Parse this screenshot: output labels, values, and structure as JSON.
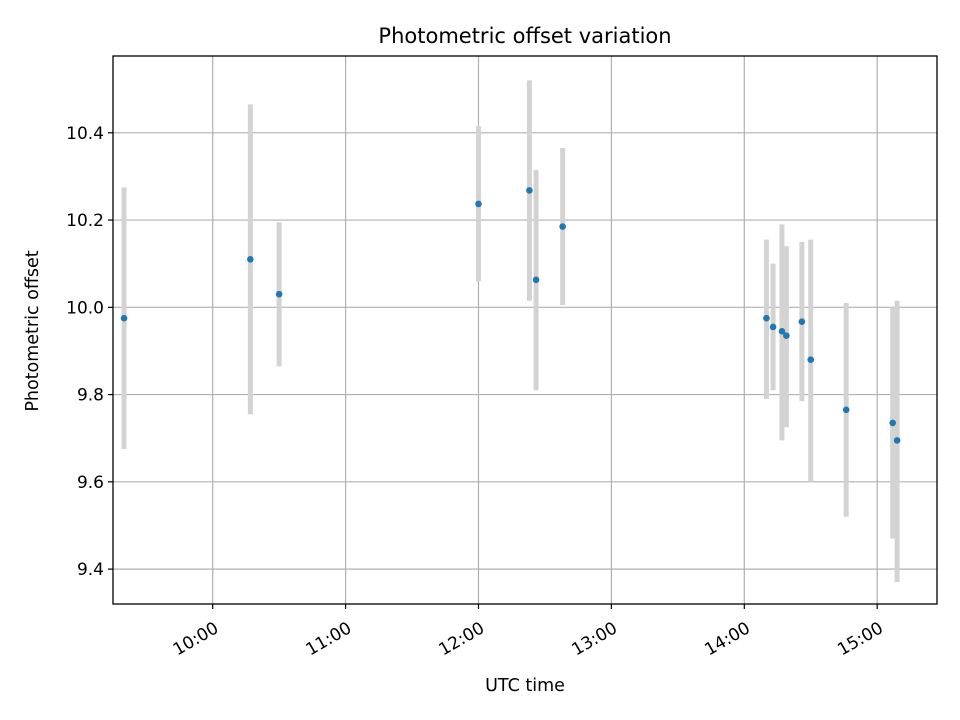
{
  "chart_data": {
    "type": "scatter",
    "title": "Photometric offset variation",
    "xlabel": "UTC time",
    "ylabel": "Photometric offset",
    "xlim": [
      "09:15",
      "15:27"
    ],
    "ylim": [
      9.32,
      10.576
    ],
    "grid": true,
    "x_ticks": [
      "10:00",
      "11:00",
      "12:00",
      "13:00",
      "14:00",
      "15:00"
    ],
    "y_ticks": [
      "9.4",
      "9.6",
      "9.8",
      "10.0",
      "10.2",
      "10.4"
    ],
    "marker_color": "#1f77b4",
    "errorbar_color": "#d3d3d3",
    "points": [
      {
        "x": "09:20",
        "y": 9.975,
        "low": 9.675,
        "high": 10.275
      },
      {
        "x": "10:17",
        "y": 10.11,
        "low": 9.755,
        "high": 10.465
      },
      {
        "x": "10:30",
        "y": 10.03,
        "low": 9.865,
        "high": 10.195
      },
      {
        "x": "12:00",
        "y": 10.237,
        "low": 10.06,
        "high": 10.415
      },
      {
        "x": "12:23",
        "y": 10.268,
        "low": 10.015,
        "high": 10.52
      },
      {
        "x": "12:26",
        "y": 10.063,
        "low": 9.81,
        "high": 10.315
      },
      {
        "x": "12:38",
        "y": 10.185,
        "low": 10.005,
        "high": 10.365
      },
      {
        "x": "14:10",
        "y": 9.975,
        "low": 9.79,
        "high": 10.155
      },
      {
        "x": "14:13",
        "y": 9.955,
        "low": 9.81,
        "high": 10.1
      },
      {
        "x": "14:17",
        "y": 9.945,
        "low": 9.695,
        "high": 10.19
      },
      {
        "x": "14:19",
        "y": 9.935,
        "low": 9.725,
        "high": 10.14
      },
      {
        "x": "14:26",
        "y": 9.967,
        "low": 9.785,
        "high": 10.15
      },
      {
        "x": "14:30",
        "y": 9.88,
        "low": 9.6,
        "high": 10.155
      },
      {
        "x": "14:46",
        "y": 9.765,
        "low": 9.52,
        "high": 10.01
      },
      {
        "x": "15:07",
        "y": 9.735,
        "low": 9.47,
        "high": 10.0
      },
      {
        "x": "15:09",
        "y": 9.695,
        "low": 9.37,
        "high": 10.015
      }
    ]
  }
}
